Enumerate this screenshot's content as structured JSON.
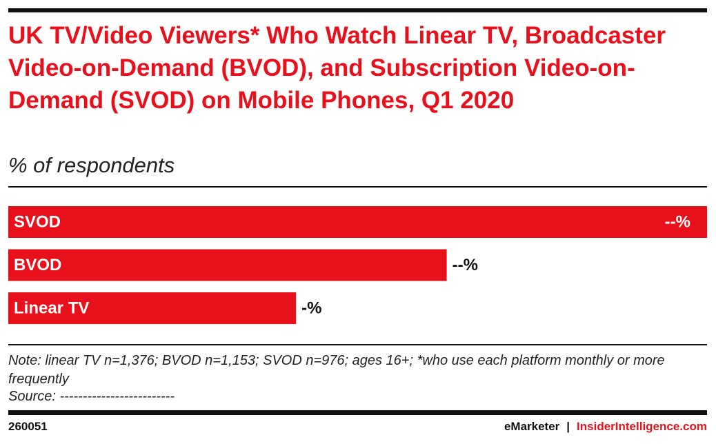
{
  "chart_data": {
    "type": "bar",
    "orientation": "horizontal",
    "title": "UK TV/Video Viewers* Who Watch Linear TV, Broadcaster Video-on-Demand (BVOD), and Subscription Video-on-Demand (SVOD) on Mobile Phones, Q1 2020",
    "subtitle": "% of respondents",
    "categories": [
      "SVOD",
      "BVOD",
      "Linear TV"
    ],
    "values": [
      51,
      32,
      21
    ],
    "value_labels": [
      "--%",
      "--%",
      "-%"
    ],
    "color": "#e8101b",
    "note": "Note: linear TV n=1,376; BVOD n=1,153; SVOD n=976; ages 16+; *who use each platform monthly or more frequently",
    "source": "Source: -------------------------"
  },
  "footer": {
    "id": "260051",
    "brand": "eMarketer",
    "separator": "|",
    "site": "InsiderIntelligence.com"
  }
}
